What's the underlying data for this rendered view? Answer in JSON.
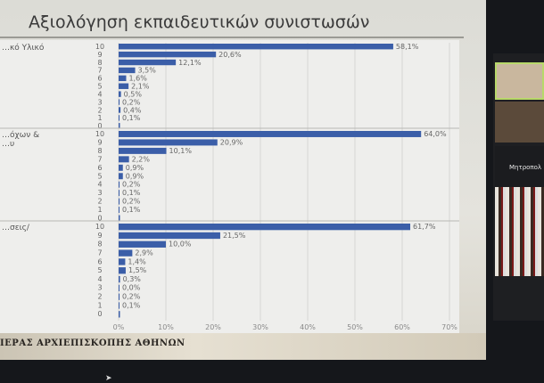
{
  "slide": {
    "title": "Αξιολόγηση εκπαιδευτικών συνιστωσών",
    "footer": "ΙΕΡΑΣ ΑΡΧΙΕΠΙΣΚΟΠΗΣ ΑΘΗΝΩΝ"
  },
  "video_panel": {
    "participant_name": "Μητροπολ"
  },
  "colors": {
    "bar": "#3b5ea8",
    "text": "#555555"
  },
  "chart_data": {
    "type": "bar",
    "orientation": "horizontal",
    "title": "Αξιολόγηση εκπαιδευτικών συνιστωσών",
    "categories": [
      "10",
      "9",
      "8",
      "7",
      "6",
      "5",
      "4",
      "3",
      "2",
      "1",
      "0"
    ],
    "x_ticks": [
      "0%",
      "10%",
      "20%",
      "30%",
      "40%",
      "50%",
      "60%",
      "70%"
    ],
    "xlim": [
      0,
      70
    ],
    "grid": true,
    "groups": [
      {
        "name": "…κό Υλικό",
        "values": [
          58.1,
          20.6,
          12.1,
          3.5,
          1.6,
          2.1,
          0.5,
          0.2,
          0.4,
          0.1,
          null
        ],
        "labels": [
          "58,1%",
          "20,6%",
          "12,1%",
          "3,5%",
          "1,6%",
          "2,1%",
          "0,5%",
          "0,2%",
          "0,4%",
          "0,1%",
          ""
        ]
      },
      {
        "name": "…όχων &",
        "name2": "…υ",
        "values": [
          64.0,
          20.9,
          10.1,
          2.2,
          0.9,
          0.9,
          0.2,
          0.1,
          0.2,
          0.1,
          null
        ],
        "labels": [
          "64,0%",
          "20,9%",
          "10,1%",
          "2,2%",
          "0,9%",
          "0,9%",
          "0,2%",
          "0,1%",
          "0,2%",
          "0,1%",
          ""
        ]
      },
      {
        "name": "…σεις/",
        "values": [
          61.7,
          21.5,
          10.0,
          2.9,
          1.4,
          1.5,
          0.3,
          0.0,
          0.2,
          0.1,
          null
        ],
        "labels": [
          "61,7%",
          "21,5%",
          "10,0%",
          "2,9%",
          "1,4%",
          "1,5%",
          "0,3%",
          "0,0%",
          "0,2%",
          "0,1%",
          ""
        ]
      }
    ]
  }
}
